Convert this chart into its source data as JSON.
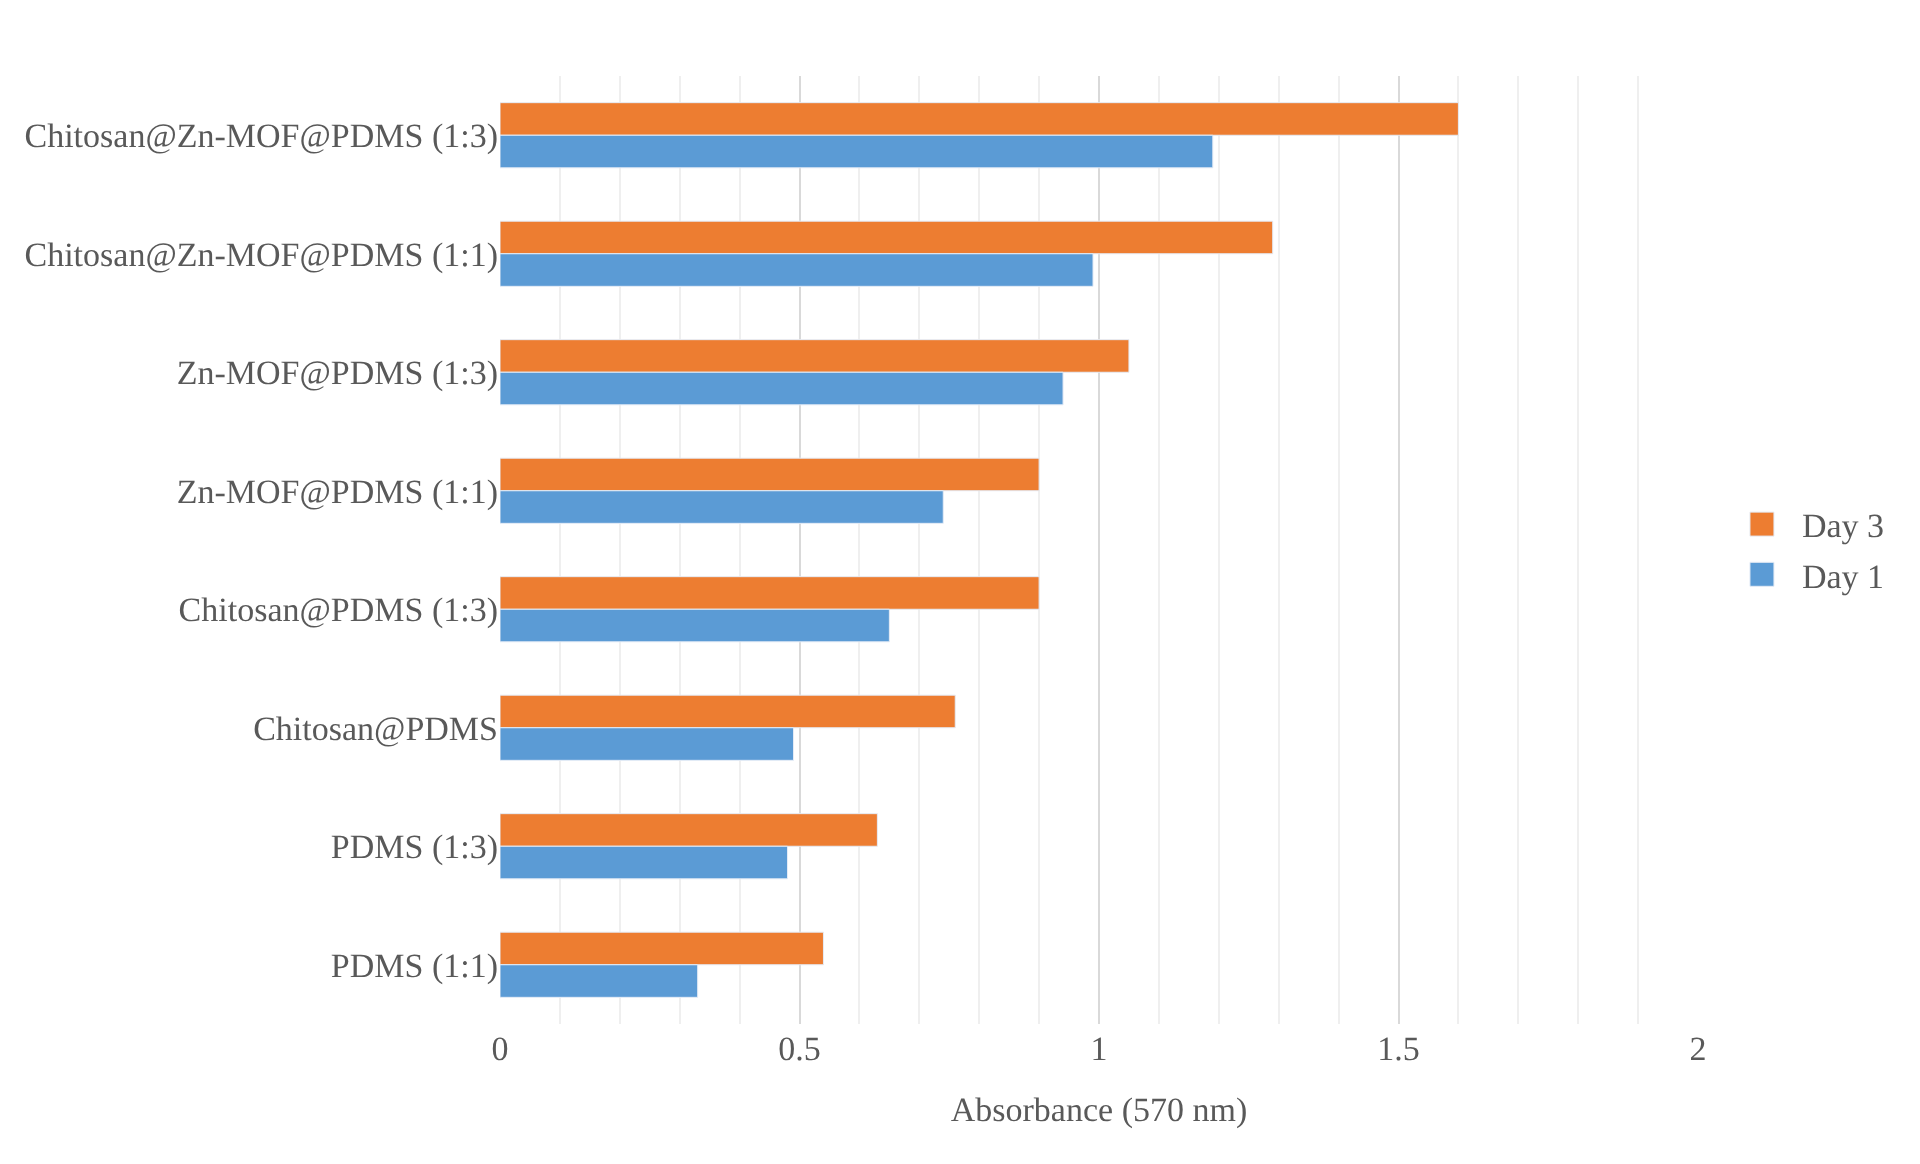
{
  "chart_data": {
    "type": "bar",
    "orientation": "horizontal",
    "xlabel": "Absorbance (570 nm)",
    "categories": [
      "Chitosan@Zn-MOF@PDMS (1:3)",
      "Chitosan@Zn-MOF@PDMS (1:1)",
      "Zn-MOF@PDMS (1:3)",
      "Zn-MOF@PDMS (1:1)",
      "Chitosan@PDMS (1:3)",
      "Chitosan@PDMS",
      "PDMS (1:3)",
      "PDMS (1:1)"
    ],
    "series": [
      {
        "name": "Day 3",
        "color": "#ed7d31",
        "values": [
          1.6,
          1.29,
          1.05,
          0.9,
          0.9,
          0.76,
          0.63,
          0.54
        ]
      },
      {
        "name": "Day 1",
        "color": "#5b9bd5",
        "values": [
          1.19,
          0.99,
          0.94,
          0.74,
          0.65,
          0.49,
          0.48,
          0.33
        ]
      }
    ],
    "xlim": [
      0,
      2
    ],
    "xticks": [
      0,
      0.5,
      1,
      1.5,
      2
    ],
    "grid": "x",
    "legend": "right"
  }
}
